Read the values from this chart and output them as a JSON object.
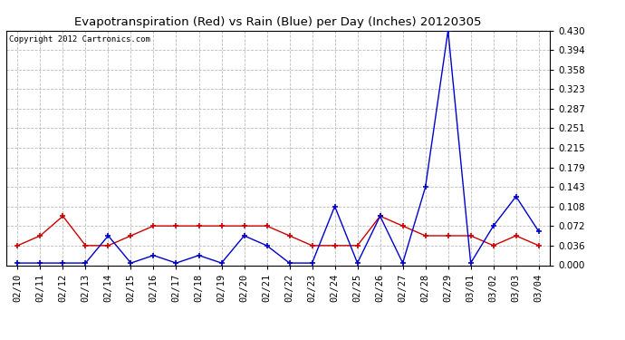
{
  "title": "Evapotranspiration (Red) vs Rain (Blue) per Day (Inches) 20120305",
  "copyright": "Copyright 2012 Cartronics.com",
  "labels": [
    "02/10",
    "02/11",
    "02/12",
    "02/13",
    "02/14",
    "02/15",
    "02/16",
    "02/17",
    "02/18",
    "02/19",
    "02/20",
    "02/21",
    "02/22",
    "02/23",
    "02/24",
    "02/25",
    "02/26",
    "02/27",
    "02/28",
    "02/29",
    "03/01",
    "03/02",
    "03/03",
    "03/04"
  ],
  "red_data": [
    0.036,
    0.054,
    0.09,
    0.036,
    0.036,
    0.054,
    0.072,
    0.072,
    0.072,
    0.072,
    0.072,
    0.072,
    0.054,
    0.036,
    0.036,
    0.036,
    0.09,
    0.072,
    0.054,
    0.054,
    0.054,
    0.036,
    0.054,
    0.036
  ],
  "blue_data": [
    0.004,
    0.004,
    0.004,
    0.004,
    0.054,
    0.004,
    0.018,
    0.004,
    0.018,
    0.004,
    0.054,
    0.036,
    0.004,
    0.004,
    0.108,
    0.004,
    0.09,
    0.004,
    0.143,
    0.43,
    0.004,
    0.072,
    0.126,
    0.062
  ],
  "ylim": [
    0.0,
    0.43
  ],
  "yticks": [
    0.0,
    0.036,
    0.072,
    0.108,
    0.143,
    0.179,
    0.215,
    0.251,
    0.287,
    0.323,
    0.358,
    0.394,
    0.43
  ],
  "bg_color": "#ffffff",
  "grid_color": "#bbbbbb",
  "red_color": "#cc0000",
  "blue_color": "#0000cc",
  "title_fontsize": 9.5,
  "copyright_fontsize": 6.5,
  "tick_fontsize": 7.5
}
